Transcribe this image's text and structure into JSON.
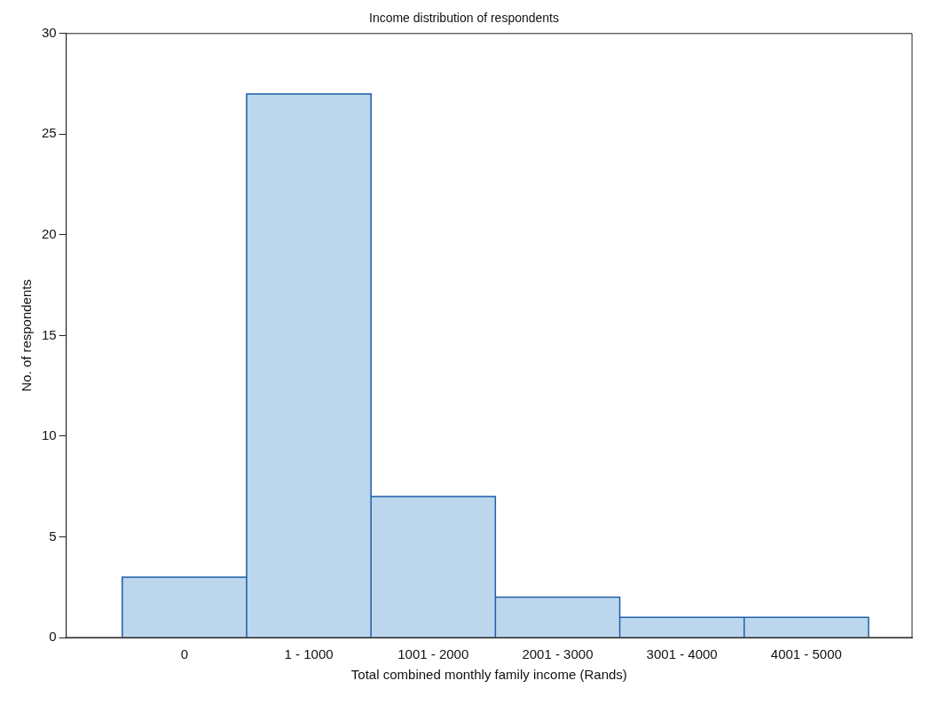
{
  "chart_data": {
    "type": "bar",
    "title": "Income distribution of respondents",
    "xlabel": "Total combined monthly family income (Rands)",
    "ylabel": "No. of respondents",
    "categories": [
      "0",
      "1 - 1000",
      "1001 - 2000",
      "2001 - 3000",
      "3001 - 4000",
      "4001 - 5000"
    ],
    "values": [
      3,
      27,
      7,
      2,
      1,
      1
    ],
    "color": "#bcd6ee",
    "ylim": [
      0,
      30
    ],
    "yticks": [
      0,
      5,
      10,
      15,
      20,
      25,
      30
    ],
    "grid": false
  }
}
